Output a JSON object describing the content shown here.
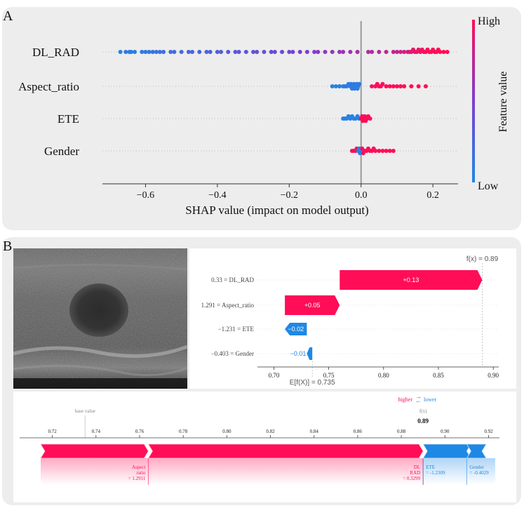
{
  "panel_labels": {
    "a": "A",
    "b": "B"
  },
  "chart_data": [
    {
      "type": "scatter",
      "subtype": "shap-beeswarm",
      "title": "",
      "xlabel": "SHAP value (impact on model output)",
      "ylabel": "",
      "xlim": [
        -0.72,
        0.27
      ],
      "xticks": [
        -0.6,
        -0.4,
        -0.2,
        0.0,
        0.2
      ],
      "xtick_labels": [
        "−0.6",
        "−0.4",
        "−0.2",
        "0.0",
        "0.2"
      ],
      "features": [
        "DL_RAD",
        "Aspect_ratio",
        "ETE",
        "Gender"
      ],
      "colorbar": {
        "label": "Feature value",
        "high": "High",
        "low": "Low",
        "high_color": "#ff0d57",
        "low_color": "#1e88e5"
      },
      "series": [
        {
          "feature": "DL_RAD",
          "points": [
            [
              -0.67,
              0.0
            ],
            [
              -0.655,
              0.1
            ],
            [
              -0.645,
              0.0
            ],
            [
              -0.64,
              0.1
            ],
            [
              -0.63,
              0.05
            ],
            [
              -0.61,
              0.1
            ],
            [
              -0.6,
              0.1
            ],
            [
              -0.59,
              0.1
            ],
            [
              -0.58,
              0.12
            ],
            [
              -0.57,
              0.14
            ],
            [
              -0.56,
              0.15
            ],
            [
              -0.55,
              0.16
            ],
            [
              -0.53,
              0.18
            ],
            [
              -0.52,
              0.2
            ],
            [
              -0.5,
              0.2
            ],
            [
              -0.48,
              0.22
            ],
            [
              -0.47,
              0.22
            ],
            [
              -0.45,
              0.25
            ],
            [
              -0.43,
              0.25
            ],
            [
              -0.42,
              0.26
            ],
            [
              -0.4,
              0.28
            ],
            [
              -0.39,
              0.3
            ],
            [
              -0.37,
              0.32
            ],
            [
              -0.35,
              0.33
            ],
            [
              -0.34,
              0.34
            ],
            [
              -0.32,
              0.35
            ],
            [
              -0.3,
              0.36
            ],
            [
              -0.29,
              0.38
            ],
            [
              -0.27,
              0.4
            ],
            [
              -0.25,
              0.42
            ],
            [
              -0.24,
              0.43
            ],
            [
              -0.22,
              0.45
            ],
            [
              -0.2,
              0.46
            ],
            [
              -0.19,
              0.47
            ],
            [
              -0.17,
              0.5
            ],
            [
              -0.15,
              0.52
            ],
            [
              -0.13,
              0.54
            ],
            [
              -0.12,
              0.55
            ],
            [
              -0.1,
              0.56
            ],
            [
              -0.08,
              0.58
            ],
            [
              -0.06,
              0.6
            ],
            [
              -0.05,
              0.62
            ],
            [
              -0.03,
              0.64
            ],
            [
              -0.01,
              0.65
            ],
            [
              0.02,
              0.68
            ],
            [
              0.03,
              0.7
            ],
            [
              0.05,
              0.72
            ],
            [
              0.07,
              0.74
            ],
            [
              0.09,
              0.76
            ],
            [
              0.1,
              0.78
            ],
            [
              0.11,
              0.8
            ],
            [
              0.12,
              0.82
            ],
            [
              0.13,
              0.84
            ],
            [
              0.135,
              0.86
            ],
            [
              0.14,
              0.88
            ],
            [
              0.145,
              0.9
            ],
            [
              0.15,
              0.92
            ],
            [
              0.155,
              0.93
            ],
            [
              0.16,
              0.94
            ],
            [
              0.165,
              0.95
            ],
            [
              0.17,
              0.96
            ],
            [
              0.175,
              0.97
            ],
            [
              0.18,
              0.98
            ],
            [
              0.185,
              0.99
            ],
            [
              0.19,
              0.99
            ],
            [
              0.195,
              1.0
            ],
            [
              0.2,
              1.0
            ],
            [
              0.205,
              1.0
            ],
            [
              0.21,
              1.0
            ],
            [
              0.215,
              1.0
            ],
            [
              0.22,
              1.0
            ],
            [
              0.23,
              1.0
            ],
            [
              0.24,
              1.0
            ]
          ]
        },
        {
          "feature": "Aspect_ratio",
          "points": [
            [
              -0.08,
              0.05
            ],
            [
              -0.07,
              0.05
            ],
            [
              -0.06,
              0.1
            ],
            [
              -0.05,
              0.05
            ],
            [
              -0.045,
              0.1
            ],
            [
              -0.04,
              0.1
            ],
            [
              -0.035,
              0.05
            ],
            [
              -0.03,
              0.1
            ],
            [
              -0.028,
              0.1
            ],
            [
              -0.025,
              0.05
            ],
            [
              -0.022,
              0.1
            ],
            [
              -0.02,
              0.1
            ],
            [
              -0.018,
              0.1
            ],
            [
              -0.015,
              0.05
            ],
            [
              -0.012,
              0.1
            ],
            [
              -0.01,
              0.1
            ],
            [
              -0.008,
              0.05
            ],
            [
              -0.005,
              0.1
            ],
            [
              0.03,
              0.95
            ],
            [
              0.04,
              0.95
            ],
            [
              0.045,
              1.0
            ],
            [
              0.05,
              0.95
            ],
            [
              0.055,
              1.0
            ],
            [
              0.06,
              1.0
            ],
            [
              0.07,
              1.0
            ],
            [
              0.08,
              1.0
            ],
            [
              0.09,
              1.0
            ],
            [
              0.1,
              1.0
            ],
            [
              0.11,
              1.0
            ],
            [
              0.12,
              1.0
            ],
            [
              0.14,
              1.0
            ],
            [
              0.16,
              1.0
            ],
            [
              0.18,
              1.0
            ]
          ]
        },
        {
          "feature": "ETE",
          "points": [
            [
              -0.05,
              0.05
            ],
            [
              -0.045,
              0.05
            ],
            [
              -0.04,
              0.05
            ],
            [
              -0.035,
              0.05
            ],
            [
              -0.03,
              0.05
            ],
            [
              -0.025,
              0.05
            ],
            [
              -0.02,
              0.05
            ],
            [
              -0.015,
              0.05
            ],
            [
              -0.01,
              0.05
            ],
            [
              -0.005,
              0.05
            ],
            [
              0.0,
              1.0
            ],
            [
              0.003,
              1.0
            ],
            [
              0.005,
              1.0
            ],
            [
              0.007,
              1.0
            ],
            [
              0.01,
              1.0
            ],
            [
              0.013,
              1.0
            ],
            [
              0.016,
              1.0
            ],
            [
              0.02,
              1.0
            ],
            [
              0.025,
              1.0
            ]
          ]
        },
        {
          "feature": "Gender",
          "points": [
            [
              -0.025,
              1.0
            ],
            [
              -0.02,
              1.0
            ],
            [
              -0.015,
              1.0
            ],
            [
              -0.012,
              1.0
            ],
            [
              -0.008,
              0.05
            ],
            [
              -0.005,
              0.05
            ],
            [
              -0.003,
              0.05
            ],
            [
              0.0,
              0.05
            ],
            [
              0.003,
              1.0
            ],
            [
              0.006,
              1.0
            ],
            [
              0.01,
              1.0
            ],
            [
              0.015,
              1.0
            ],
            [
              0.02,
              1.0
            ],
            [
              0.025,
              1.0
            ],
            [
              0.03,
              1.0
            ],
            [
              0.035,
              1.0
            ],
            [
              0.04,
              1.0
            ],
            [
              0.05,
              1.0
            ],
            [
              0.06,
              1.0
            ],
            [
              0.07,
              1.0
            ],
            [
              0.08,
              1.0
            ],
            [
              0.09,
              1.0
            ]
          ]
        }
      ]
    },
    {
      "type": "bar",
      "subtype": "shap-waterfall",
      "fx_label": "f(x) = 0.89",
      "fx_value": 0.89,
      "base_label": "E[f(X)] = 0.735",
      "base_value": 0.735,
      "xlim": [
        0.685,
        0.905
      ],
      "xticks": [
        0.7,
        0.75,
        0.8,
        0.85,
        0.9
      ],
      "xtick_labels": [
        "0.70",
        "0.75",
        "0.80",
        "0.85",
        "0.90"
      ],
      "bars": [
        {
          "feature_label": "0.33 = DL_RAD",
          "value": 0.13,
          "value_label": "+0.13",
          "start": 0.76,
          "end": 0.89
        },
        {
          "feature_label": "1.291 = Aspect_ratio",
          "value": 0.05,
          "value_label": "+0.05",
          "start": 0.71,
          "end": 0.76
        },
        {
          "feature_label": "−1.231 = ETE",
          "value": -0.02,
          "value_label": "−0.02",
          "start": 0.73,
          "end": 0.71
        },
        {
          "feature_label": "−0.403 = Gender",
          "value": -0.01,
          "value_label": "−0.01",
          "start": 0.735,
          "end": 0.73
        }
      ],
      "pos_color": "#ff0d57",
      "neg_color": "#1e88e5"
    },
    {
      "type": "bar",
      "subtype": "shap-force",
      "base_value_label": "base value",
      "base_value": 0.735,
      "fx_label": "f(x)",
      "fx_value_label": "0.89",
      "fx_value": 0.89,
      "higher_label": "higher",
      "lower_label": "lower",
      "xlim": [
        0.705,
        0.925
      ],
      "xticks": [
        0.72,
        0.74,
        0.76,
        0.78,
        0.8,
        0.82,
        0.84,
        0.86,
        0.88,
        0.9,
        0.92
      ],
      "xtick_labels": [
        "0.72",
        "0.74",
        "0.76",
        "0.78",
        "0.80",
        "0.82",
        "0.84",
        "0.86",
        "0.88",
        "0.90",
        "0.92"
      ],
      "segments": [
        {
          "sign": "pos",
          "start": 0.7,
          "end": 0.764
        },
        {
          "sign": "pos",
          "start": 0.764,
          "end": 0.89
        },
        {
          "sign": "neg",
          "start": 0.89,
          "end": 0.91
        },
        {
          "sign": "neg",
          "start": 0.91,
          "end": 0.917
        }
      ],
      "labels": [
        {
          "lines": [
            "Aspect",
            "ratio",
            "= 1.2911"
          ],
          "at": 0.764,
          "sign": "pos"
        },
        {
          "lines": [
            "DL",
            "RAD",
            "= 0.3299"
          ],
          "at": 0.89,
          "sign": "pos"
        },
        {
          "lines": [
            "ETE",
            "= -1.2309"
          ],
          "at": 0.89,
          "sign": "neg"
        },
        {
          "lines": [
            "Gender",
            "= -0.4029"
          ],
          "at": 0.91,
          "sign": "neg"
        }
      ]
    }
  ]
}
